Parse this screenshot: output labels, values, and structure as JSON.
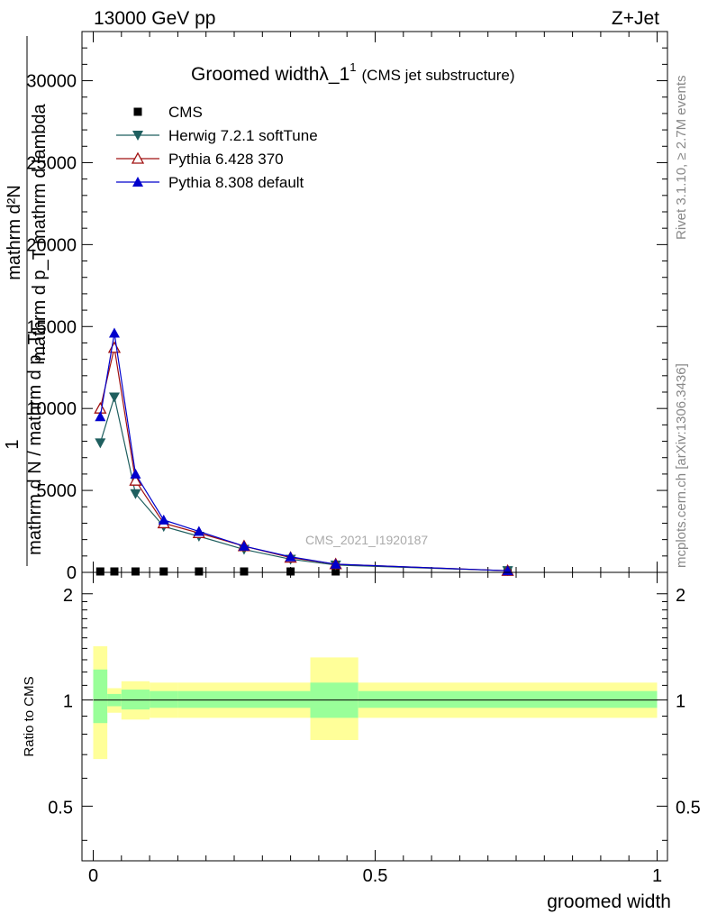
{
  "header": {
    "energy_label": "13000 GeV pp",
    "process_label": "Z+Jet",
    "title": "Groomed widthλ_1",
    "title_sup": "1",
    "subtitle": "(CMS jet substructure)",
    "side_label_rivet": "Rivet 3.1.10, ≥ 2.7M events",
    "side_label_mcplots": "mcplots.cern.ch [arXiv:1306.3436]",
    "analysis_watermark": "CMS_2021_I1920187",
    "ylabel_main_numerator": "mathrm d²N",
    "ylabel_main_denominator": "mathrm d p_T mathrm d lambda",
    "ylabel_main_numerator2": "1",
    "ylabel_main_line2": "mathrm d N / mathrm d p_T",
    "ylabel_main_extra": "mathrm d p_T",
    "ylabel_ratio": "Ratio to CMS",
    "xlabel": "groomed width"
  },
  "colors": {
    "cms": "#000000",
    "herwig": "#1f5f5f",
    "pythia6": "#a01010",
    "pythia8": "#0000cc",
    "band_inner": "#99ff99",
    "band_outer": "#ffff99"
  },
  "chart_data": [
    {
      "type": "line",
      "panel": "main",
      "xlim": [
        -0.02,
        1.02
      ],
      "ylim": [
        0,
        33000
      ],
      "y_ticks": [
        0,
        5000,
        10000,
        15000,
        20000,
        25000,
        30000
      ],
      "y_tick_labels": [
        "0",
        "5000",
        "10000",
        "15000",
        "20000",
        "25000",
        "30000"
      ],
      "legend_position": "top-left",
      "series": [
        {
          "name": "CMS",
          "marker": "square",
          "x": [
            0.0125,
            0.0375,
            0.075,
            0.125,
            0.1875,
            0.2675,
            0.35,
            0.43,
            0.735
          ],
          "values": [
            0,
            0,
            0,
            0,
            0,
            0,
            0,
            0,
            0
          ]
        },
        {
          "name": "Herwig 7.2.1 softTune",
          "marker": "triangle-down",
          "x": [
            0.0125,
            0.0375,
            0.075,
            0.125,
            0.1875,
            0.2675,
            0.35,
            0.43,
            0.735
          ],
          "values": [
            7900,
            10700,
            4800,
            2800,
            2200,
            1400,
            800,
            450,
            100
          ]
        },
        {
          "name": "Pythia 6.428 370",
          "marker": "triangle-up-open",
          "x": [
            0.0125,
            0.0375,
            0.075,
            0.125,
            0.1875,
            0.2675,
            0.35,
            0.43,
            0.735
          ],
          "values": [
            10000,
            13700,
            5600,
            3000,
            2400,
            1600,
            900,
            500,
            100
          ]
        },
        {
          "name": "Pythia 8.308 default",
          "marker": "triangle-up",
          "x": [
            0.0125,
            0.0375,
            0.075,
            0.125,
            0.1875,
            0.2675,
            0.35,
            0.43,
            0.735
          ],
          "values": [
            9500,
            14600,
            6000,
            3200,
            2500,
            1600,
            950,
            500,
            100
          ]
        }
      ]
    },
    {
      "type": "area",
      "panel": "ratio",
      "xlim": [
        -0.02,
        1.02
      ],
      "ylim": [
        0.35,
        2.3
      ],
      "y_scale": "log",
      "y_ticks": [
        0.5,
        1,
        2
      ],
      "y_tick_labels": [
        "0.5",
        "1",
        "2"
      ],
      "x_ticks": [
        0,
        0.5,
        1
      ],
      "x_tick_labels": [
        "0",
        "0.5",
        "1"
      ],
      "bins": [
        {
          "lo": 0.0,
          "hi": 0.025,
          "inner": [
            0.86,
            1.22
          ],
          "outer": [
            0.68,
            1.42
          ]
        },
        {
          "lo": 0.025,
          "hi": 0.05,
          "inner": [
            0.96,
            1.04
          ],
          "outer": [
            0.92,
            1.08
          ]
        },
        {
          "lo": 0.05,
          "hi": 0.1,
          "inner": [
            0.94,
            1.07
          ],
          "outer": [
            0.88,
            1.13
          ]
        },
        {
          "lo": 0.1,
          "hi": 0.15,
          "inner": [
            0.95,
            1.06
          ],
          "outer": [
            0.89,
            1.12
          ]
        },
        {
          "lo": 0.15,
          "hi": 0.385,
          "inner": [
            0.95,
            1.06
          ],
          "outer": [
            0.89,
            1.12
          ]
        },
        {
          "lo": 0.385,
          "hi": 0.47,
          "inner": [
            0.89,
            1.12
          ],
          "outer": [
            0.77,
            1.32
          ]
        },
        {
          "lo": 0.47,
          "hi": 1.0,
          "inner": [
            0.95,
            1.06
          ],
          "outer": [
            0.89,
            1.12
          ]
        }
      ],
      "reference_line": 1
    }
  ]
}
